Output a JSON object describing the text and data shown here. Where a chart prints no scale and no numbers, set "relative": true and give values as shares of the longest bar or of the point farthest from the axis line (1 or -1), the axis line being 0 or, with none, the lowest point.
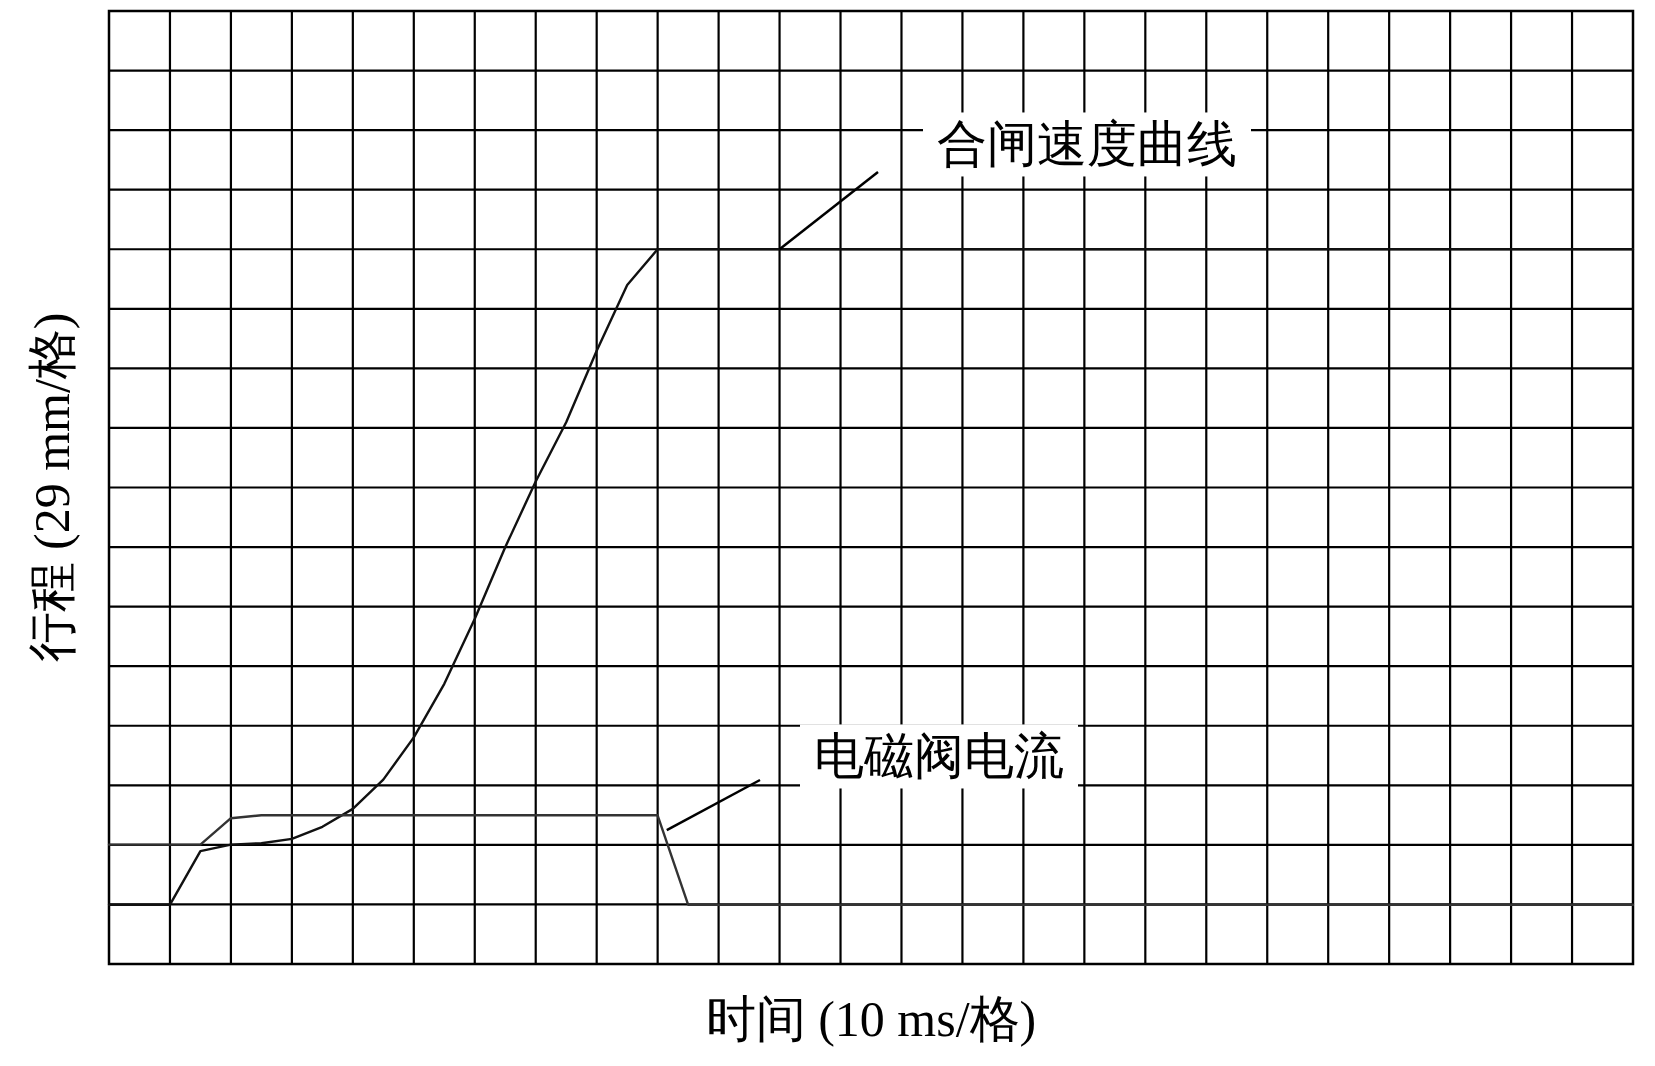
{
  "chart_data": {
    "type": "line",
    "relative": true,
    "xlabel": "时间 (10 ms/格)",
    "ylabel": "行程 (29 mm/格)",
    "grid": true,
    "line_style": "solid",
    "marker": "none",
    "categories": [
      null,
      null,
      null,
      null,
      null,
      null,
      null,
      null,
      null,
      null,
      null,
      null,
      null,
      null,
      null,
      null,
      null,
      null,
      null,
      null,
      null,
      null,
      null,
      null,
      null,
      null,
      null,
      null,
      null,
      null,
      null,
      null,
      null,
      null,
      null,
      null,
      null,
      null,
      null,
      null,
      null,
      null,
      null,
      null,
      null,
      null,
      null,
      null,
      null,
      null,
      null
    ],
    "series": [
      {
        "name": "合闸速度曲线",
        "color": "#111111",
        "values": [
          0.083,
          0.083,
          0.083,
          0.158,
          0.167,
          0.169,
          0.175,
          0.192,
          0.217,
          0.258,
          0.317,
          0.392,
          0.483,
          0.583,
          0.675,
          0.758,
          0.858,
          0.95,
          1,
          1,
          1,
          1,
          1,
          1,
          1,
          1,
          1,
          1,
          1,
          1,
          1,
          1,
          1,
          1,
          1,
          1,
          1,
          1,
          1,
          1,
          1,
          1,
          1,
          1,
          1,
          1,
          1,
          1,
          1,
          1,
          1
        ]
      },
      {
        "name": "电磁阀电流",
        "color": "#333333",
        "values": [
          0.167,
          0.167,
          0.167,
          0.167,
          0.204,
          0.208,
          0.208,
          0.208,
          0.208,
          0.208,
          0.208,
          0.208,
          0.208,
          0.208,
          0.208,
          0.208,
          0.208,
          0.208,
          0.208,
          0.083,
          0.083,
          0.083,
          0.083,
          0.083,
          0.083,
          0.083,
          0.083,
          0.083,
          0.083,
          0.083,
          0.083,
          0.083,
          0.083,
          0.083,
          0.083,
          0.083,
          0.083,
          0.083,
          0.083,
          0.083,
          0.083,
          0.083,
          0.083,
          0.083,
          0.083,
          0.083,
          0.083,
          0.083,
          0.083,
          0.083,
          0.083
        ]
      }
    ]
  }
}
